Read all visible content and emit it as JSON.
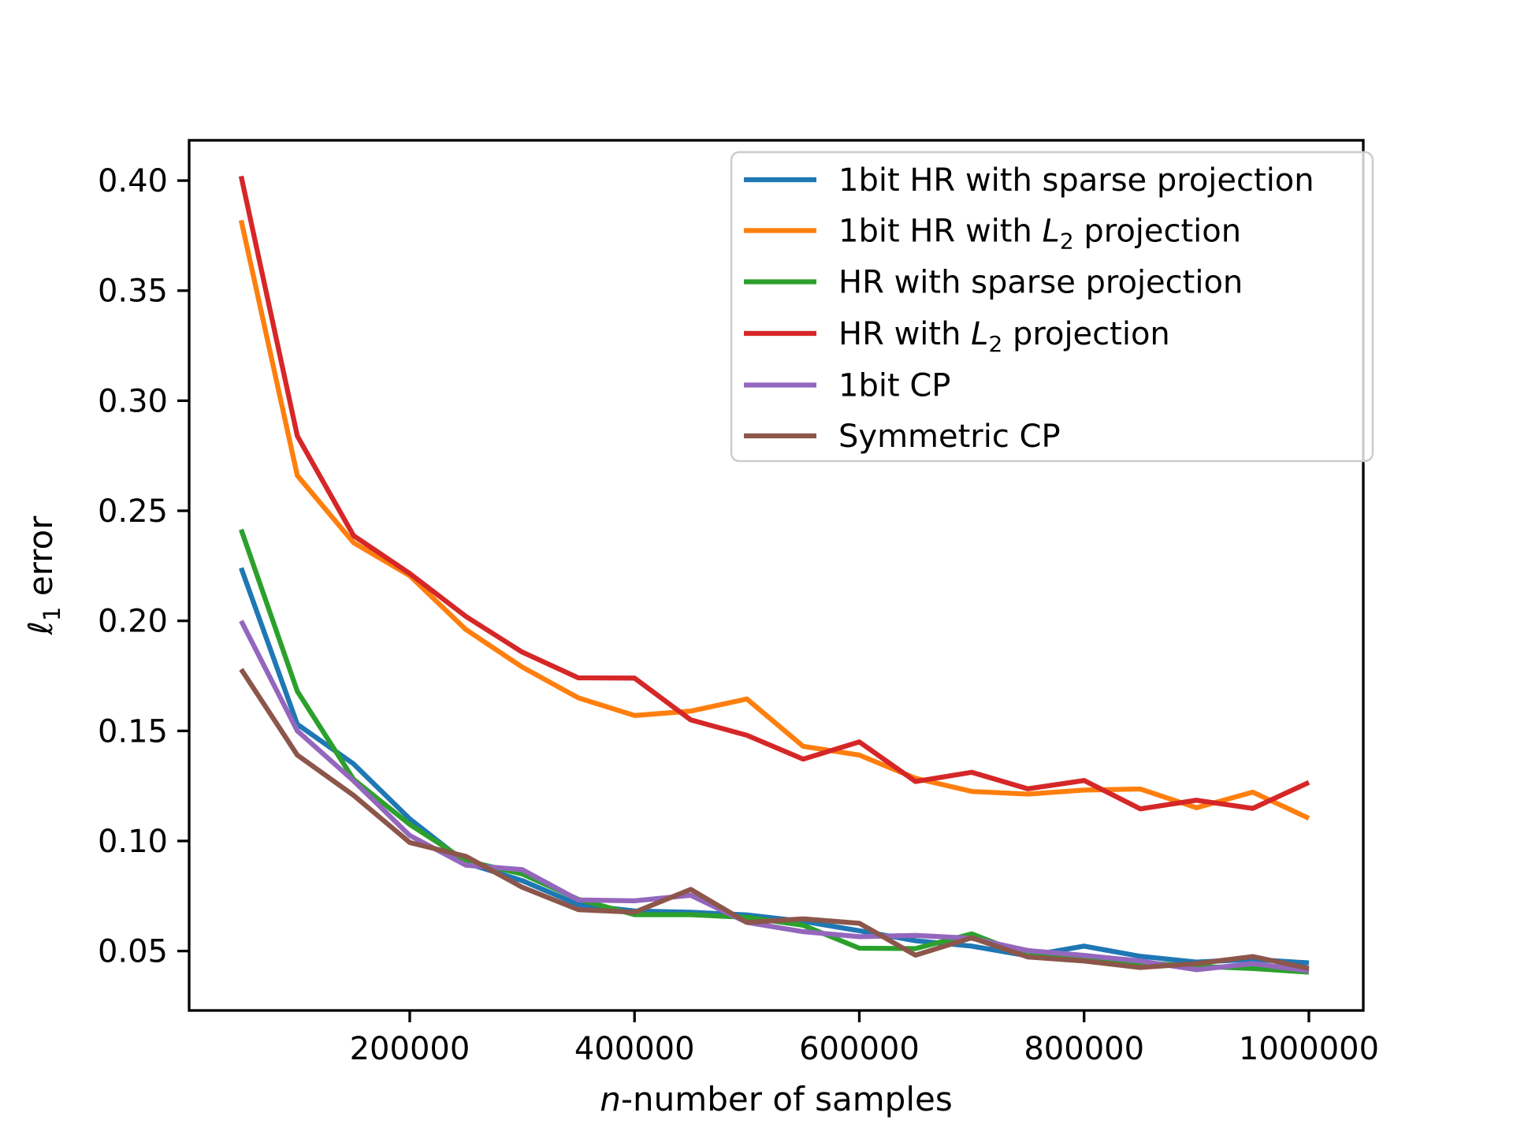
{
  "chart_data": {
    "type": "line",
    "title": "",
    "xlabel_parts": {
      "var": "n",
      "rest": "-number of samples"
    },
    "ylabel_parts": {
      "symbol": "ℓ",
      "sub": "1",
      "rest": " error"
    },
    "grid": false,
    "legend_position": "upper right",
    "xlim": [
      3700,
      1048400
    ],
    "ylim": [
      0.023,
      0.4183
    ],
    "x_ticks": [
      {
        "value": 200000,
        "label": "200000"
      },
      {
        "value": 400000,
        "label": "400000"
      },
      {
        "value": 600000,
        "label": "600000"
      },
      {
        "value": 800000,
        "label": "800000"
      },
      {
        "value": 1000000,
        "label": "1000000"
      }
    ],
    "y_ticks": [
      {
        "value": 0.05,
        "label": "0.05"
      },
      {
        "value": 0.1,
        "label": "0.10"
      },
      {
        "value": 0.15,
        "label": "0.15"
      },
      {
        "value": 0.2,
        "label": "0.20"
      },
      {
        "value": 0.25,
        "label": "0.25"
      },
      {
        "value": 0.3,
        "label": "0.30"
      },
      {
        "value": 0.35,
        "label": "0.35"
      },
      {
        "value": 0.4,
        "label": "0.40"
      }
    ],
    "x": [
      50000,
      100000,
      150000,
      200000,
      250000,
      300000,
      350000,
      400000,
      450000,
      500000,
      550000,
      600000,
      650000,
      700000,
      750000,
      800000,
      850000,
      900000,
      950000,
      1000000
    ],
    "series": [
      {
        "name": "1bit HR with sparse projection",
        "color": "#1f77b4",
        "values": [
          0.224,
          0.153,
          0.135,
          0.11,
          0.09,
          0.082,
          0.0711,
          0.0682,
          0.0676,
          0.0664,
          0.0635,
          0.0592,
          0.0547,
          0.0522,
          0.0478,
          0.0522,
          0.0476,
          0.045,
          0.0462,
          0.0446
        ]
      },
      {
        "name": "1bit HR with L2 projection",
        "color": "#ff7f0e",
        "values": [
          0.382,
          0.266,
          0.2355,
          0.2205,
          0.196,
          0.179,
          0.165,
          0.157,
          0.159,
          0.1645,
          0.143,
          0.139,
          0.1285,
          0.1225,
          0.1213,
          0.1231,
          0.1236,
          0.1151,
          0.1222,
          0.1103
        ]
      },
      {
        "name": "HR with sparse projection",
        "color": "#2ca02c",
        "values": [
          0.2415,
          0.168,
          0.128,
          0.1075,
          0.091,
          0.085,
          0.0735,
          0.0665,
          0.0665,
          0.0653,
          0.0617,
          0.0513,
          0.0511,
          0.0578,
          0.0479,
          0.0462,
          0.0447,
          0.0431,
          0.0421,
          0.0404
        ]
      },
      {
        "name": "HR with L2 projection",
        "color": "#d62728",
        "values": [
          0.402,
          0.284,
          0.2387,
          0.2215,
          0.202,
          0.1858,
          0.1741,
          0.174,
          0.155,
          0.148,
          0.1372,
          0.145,
          0.127,
          0.1312,
          0.1237,
          0.1275,
          0.1146,
          0.1185,
          0.1148,
          0.1266
        ]
      },
      {
        "name": "1bit CP",
        "color": "#9467bd",
        "values": [
          0.2,
          0.15,
          0.1273,
          0.1025,
          0.089,
          0.087,
          0.0732,
          0.0728,
          0.0753,
          0.063,
          0.0588,
          0.0565,
          0.0571,
          0.0558,
          0.0502,
          0.048,
          0.0455,
          0.0415,
          0.0443,
          0.041
        ]
      },
      {
        "name": "Symmetric CP",
        "color": "#8c564b",
        "values": [
          0.178,
          0.139,
          0.1207,
          0.0993,
          0.093,
          0.079,
          0.0688,
          0.0676,
          0.078,
          0.063,
          0.0646,
          0.0626,
          0.0481,
          0.056,
          0.0473,
          0.0455,
          0.0425,
          0.0443,
          0.0475,
          0.0421
        ]
      }
    ]
  },
  "legend": {
    "entries": [
      {
        "pre": "1bit HR with sparse projection",
        "math": "",
        "sub": "",
        "post": "",
        "color": "#1f77b4"
      },
      {
        "pre": "1bit HR with ",
        "math": "L",
        "sub": "2",
        "post": " projection",
        "color": "#ff7f0e"
      },
      {
        "pre": "HR with sparse projection",
        "math": "",
        "sub": "",
        "post": "",
        "color": "#2ca02c"
      },
      {
        "pre": "HR with ",
        "math": "L",
        "sub": "2",
        "post": " projection",
        "color": "#d62728"
      },
      {
        "pre": "1bit CP",
        "math": "",
        "sub": "",
        "post": "",
        "color": "#9467bd"
      },
      {
        "pre": "Symmetric CP",
        "math": "",
        "sub": "",
        "post": "",
        "color": "#8c564b"
      }
    ]
  }
}
